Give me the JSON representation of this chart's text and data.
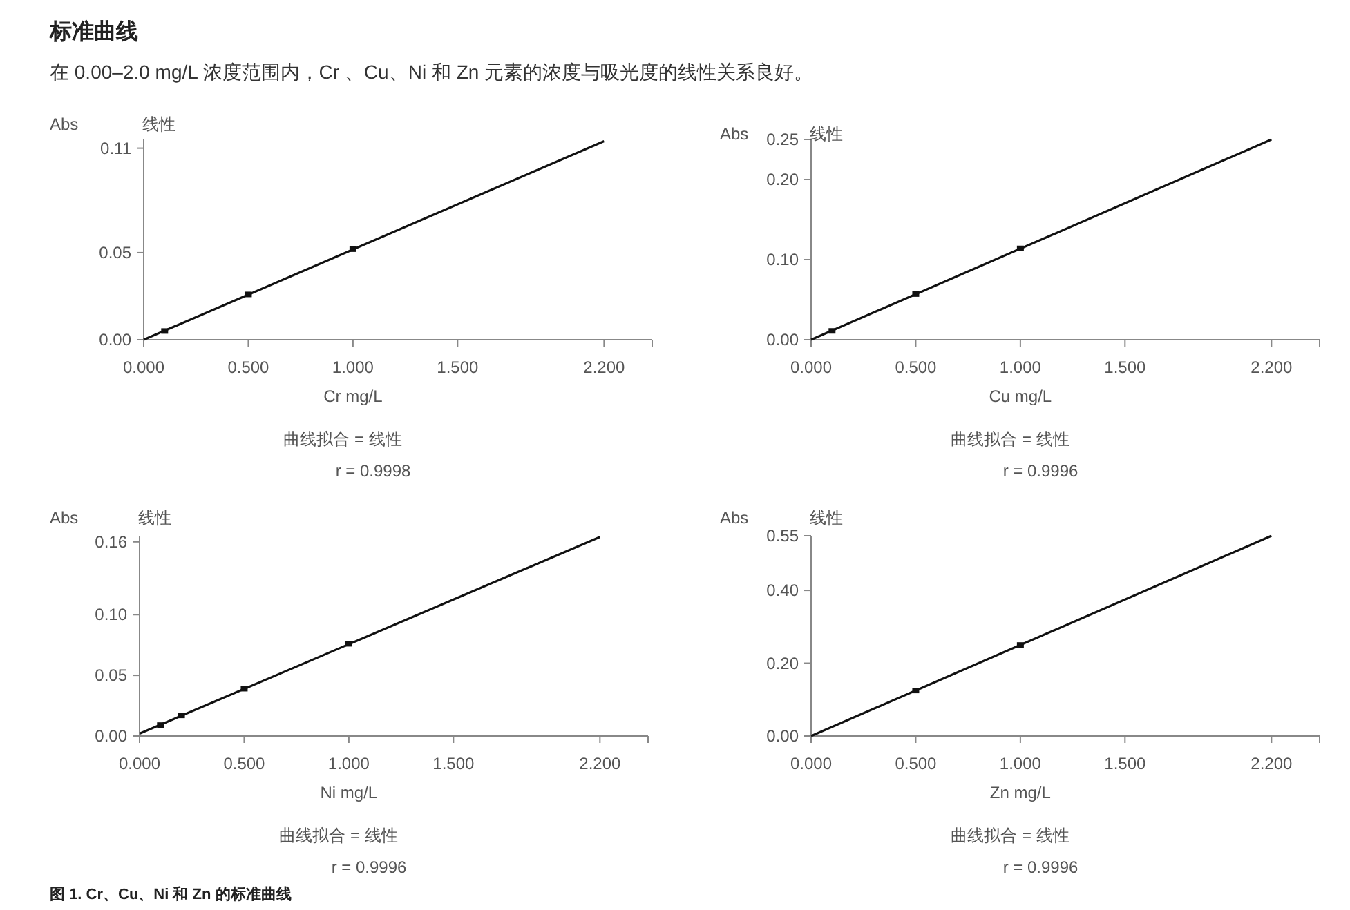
{
  "chart_data": [
    {
      "type": "line",
      "title": "标准曲线",
      "subtitle": "在 0.00–2.0 mg/L 浓度范围内，Cr 、Cu、Ni 和 Zn 元素的浓度与吸光度的线性关系良好。",
      "xlabel": "Cr mg/L",
      "ylabel": "Abs",
      "annotations": [
        "线性",
        "曲线拟合 = 线性",
        "r = 0.9998"
      ],
      "xlim": [
        0,
        2.43
      ],
      "xticks": [
        {
          "value": 0,
          "label": "0.000"
        },
        {
          "value": 0.5,
          "label": "0.500"
        },
        {
          "value": 1,
          "label": "1.000"
        },
        {
          "value": 1.5,
          "label": "1.500"
        },
        {
          "value": 2.2,
          "label": "2.200"
        },
        {
          "value": 2.43,
          "label": null
        }
      ],
      "ylim": [
        0,
        0.115
      ],
      "yticks": [
        {
          "value": 0,
          "label": "0.00"
        },
        {
          "value": 0.05,
          "label": "0.05"
        },
        {
          "value": 0.11,
          "label": "0.11"
        }
      ],
      "grid": false,
      "series": [
        {
          "color": "#111111",
          "x": [
            0,
            2.2
          ],
          "values": [
            0,
            0.114
          ],
          "marker": "none"
        },
        {
          "type": "scatter",
          "color": "#111111",
          "x": [
            0.1,
            0.5,
            1.0
          ],
          "values": [
            0.005,
            0.026,
            0.052
          ],
          "marker": "square"
        }
      ]
    },
    {
      "type": "line",
      "xlabel": "Cu mg/L",
      "ylabel": "Abs",
      "annotations": [
        "线性",
        "曲线拟合 = 线性",
        "r = 0.9996"
      ],
      "xlim": [
        0,
        2.43
      ],
      "xticks": [
        {
          "value": 0,
          "label": "0.000"
        },
        {
          "value": 0.5,
          "label": "0.500"
        },
        {
          "value": 1,
          "label": "1.000"
        },
        {
          "value": 1.5,
          "label": "1.500"
        },
        {
          "value": 2.2,
          "label": "2.200"
        },
        {
          "value": 2.43,
          "label": null
        }
      ],
      "ylim": [
        0,
        0.25
      ],
      "yticks": [
        {
          "value": 0,
          "label": "0.00"
        },
        {
          "value": 0.1,
          "label": "0.10"
        },
        {
          "value": 0.2,
          "label": "0.20"
        },
        {
          "value": 0.25,
          "label": "0.25"
        }
      ],
      "grid": false,
      "series": [
        {
          "color": "#111111",
          "x": [
            0,
            2.2
          ],
          "values": [
            0,
            0.25
          ],
          "marker": "none"
        },
        {
          "type": "scatter",
          "color": "#111111",
          "x": [
            0.1,
            0.5,
            1.0
          ],
          "values": [
            0.011,
            0.057,
            0.114
          ],
          "marker": "square"
        }
      ]
    },
    {
      "type": "line",
      "xlabel": "Ni mg/L",
      "ylabel": "Abs",
      "annotations": [
        "线性",
        "曲线拟合 = 线性",
        "r = 0.9996",
        "图 1. Cr、Cu、Ni 和 Zn 的标准曲线"
      ],
      "xlim": [
        0,
        2.43
      ],
      "xticks": [
        {
          "value": 0,
          "label": "0.000"
        },
        {
          "value": 0.5,
          "label": "0.500"
        },
        {
          "value": 1,
          "label": "1.000"
        },
        {
          "value": 1.5,
          "label": "1.500"
        },
        {
          "value": 2.2,
          "label": "2.200"
        },
        {
          "value": 2.43,
          "label": null
        }
      ],
      "ylim": [
        0,
        0.165
      ],
      "yticks": [
        {
          "value": 0,
          "label": "0.00"
        },
        {
          "value": 0.05,
          "label": "0.05"
        },
        {
          "value": 0.1,
          "label": "0.10"
        },
        {
          "value": 0.16,
          "label": "0.16"
        }
      ],
      "grid": false,
      "series": [
        {
          "color": "#111111",
          "x": [
            0,
            2.2
          ],
          "values": [
            0.002,
            0.164
          ],
          "marker": "none"
        },
        {
          "type": "scatter",
          "color": "#111111",
          "x": [
            0.1,
            0.2,
            0.5,
            1.0
          ],
          "values": [
            0.009,
            0.017,
            0.039,
            0.076
          ],
          "marker": "square"
        }
      ]
    },
    {
      "type": "line",
      "xlabel": "Zn mg/L",
      "ylabel": "Abs",
      "annotations": [
        "线性",
        "曲线拟合 = 线性",
        "r = 0.9996"
      ],
      "xlim": [
        0,
        2.43
      ],
      "xticks": [
        {
          "value": 0,
          "label": "0.000"
        },
        {
          "value": 0.5,
          "label": "0.500"
        },
        {
          "value": 1,
          "label": "1.000"
        },
        {
          "value": 1.5,
          "label": "1.500"
        },
        {
          "value": 2.2,
          "label": "2.200"
        },
        {
          "value": 2.43,
          "label": null
        }
      ],
      "ylim": [
        0,
        0.55
      ],
      "yticks": [
        {
          "value": 0,
          "label": "0.00"
        },
        {
          "value": 0.2,
          "label": "0.20"
        },
        {
          "value": 0.4,
          "label": "0.40"
        },
        {
          "value": 0.55,
          "label": "0.55"
        }
      ],
      "grid": false,
      "series": [
        {
          "color": "#111111",
          "x": [
            0,
            2.2
          ],
          "values": [
            0,
            0.55
          ],
          "marker": "none"
        },
        {
          "type": "scatter",
          "color": "#111111",
          "x": [
            0.5,
            1.0
          ],
          "values": [
            0.125,
            0.25
          ],
          "marker": "square"
        }
      ]
    }
  ]
}
